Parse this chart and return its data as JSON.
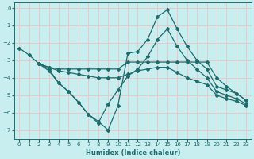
{
  "xlabel": "Humidex (Indice chaleur)",
  "bg_color": "#c8eef0",
  "grid_color": "#e8c8c8",
  "line_color": "#1e6b6b",
  "xlim": [
    -0.5,
    23.5
  ],
  "ylim": [
    -7.5,
    0.3
  ],
  "yticks": [
    0,
    -1,
    -2,
    -3,
    -4,
    -5,
    -6,
    -7
  ],
  "xticks": [
    0,
    1,
    2,
    3,
    4,
    5,
    6,
    7,
    8,
    9,
    10,
    11,
    12,
    13,
    14,
    15,
    16,
    17,
    18,
    19,
    20,
    21,
    22,
    23
  ],
  "lines": [
    {
      "x": [
        0,
        1,
        2,
        3,
        4,
        5,
        6,
        7,
        8,
        9,
        10,
        11,
        12,
        13,
        14,
        15,
        16,
        17,
        18,
        19,
        20,
        21,
        22,
        23
      ],
      "y": [
        -2.3,
        -2.7,
        -3.2,
        -3.5,
        -4.3,
        -4.8,
        -5.4,
        -6.1,
        -6.5,
        -7.0,
        -5.6,
        -2.6,
        -2.5,
        -1.8,
        -0.5,
        -0.1,
        -1.2,
        -2.2,
        -3.0,
        -3.5,
        -4.5,
        -4.7,
        -4.9,
        -5.3
      ]
    },
    {
      "x": [
        2,
        3,
        4,
        5,
        6,
        7,
        8,
        9,
        10,
        11,
        12,
        13,
        14,
        15,
        16,
        17,
        18,
        19,
        20,
        21,
        22,
        23
      ],
      "y": [
        -3.2,
        -3.4,
        -3.5,
        -3.5,
        -3.5,
        -3.5,
        -3.5,
        -3.5,
        -3.5,
        -3.1,
        -3.1,
        -3.1,
        -3.1,
        -3.1,
        -3.1,
        -3.1,
        -3.1,
        -3.1,
        -4.0,
        -4.5,
        -4.9,
        -5.3
      ]
    },
    {
      "x": [
        2,
        3,
        4,
        5,
        6,
        7,
        8,
        9,
        10,
        11,
        12,
        13,
        14,
        15,
        16,
        17,
        18,
        19,
        20,
        21,
        22,
        23
      ],
      "y": [
        -3.2,
        -3.4,
        -3.6,
        -3.7,
        -3.8,
        -3.9,
        -4.0,
        -4.0,
        -4.0,
        -3.8,
        -3.6,
        -3.5,
        -3.4,
        -3.4,
        -3.7,
        -4.0,
        -4.2,
        -4.4,
        -5.0,
        -5.2,
        -5.35,
        -5.6
      ]
    },
    {
      "x": [
        2,
        3,
        4,
        5,
        6,
        7,
        8,
        9,
        10,
        11,
        12,
        13,
        14,
        15,
        16,
        17,
        18,
        19,
        20,
        21,
        22,
        23
      ],
      "y": [
        -3.2,
        -3.6,
        -4.3,
        -4.8,
        -5.4,
        -6.1,
        -6.6,
        -5.5,
        -4.7,
        -3.9,
        -3.5,
        -2.8,
        -1.8,
        -1.2,
        -2.2,
        -3.0,
        -3.5,
        -4.0,
        -4.8,
        -5.0,
        -5.2,
        -5.5
      ]
    }
  ]
}
